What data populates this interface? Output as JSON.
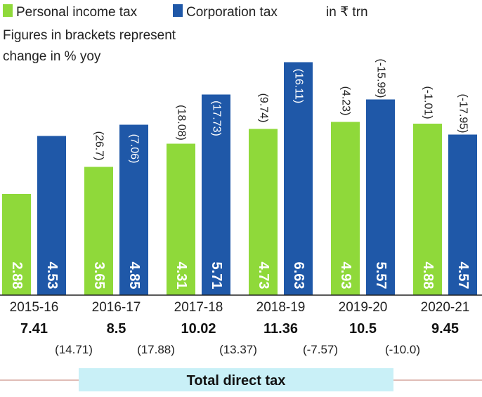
{
  "legend": {
    "personal_label": "Personal income tax",
    "corporate_label": "Corporation tax",
    "unit": "in ₹ trn"
  },
  "note": [
    "Figures in brackets represent",
    "change in % yoy"
  ],
  "footer_label": "Total direct tax",
  "colors": {
    "personal": "#8fd93a",
    "corporate": "#1f58a8",
    "footer_band": "#c9f0f7",
    "baseline": "#222222"
  },
  "chart_data": {
    "type": "bar",
    "categories": [
      "2015-16",
      "2016-17",
      "2017-18",
      "2018-19",
      "2019-20",
      "2020-21"
    ],
    "series": [
      {
        "name": "Personal income tax",
        "values": [
          2.88,
          3.65,
          4.31,
          4.73,
          4.93,
          4.88
        ],
        "changes": [
          "",
          "(26.7)",
          "(18.08)",
          "(9.74)",
          "(4.23)",
          "(-1.01)"
        ]
      },
      {
        "name": "Corporation tax",
        "values": [
          4.53,
          4.85,
          5.71,
          6.63,
          5.57,
          4.57
        ],
        "changes": [
          "",
          "(7.06)",
          "(17.73)",
          "(16.11)",
          "(-15.99)",
          "(-17.95)"
        ]
      }
    ],
    "totals": [
      "7.41",
      "8.5",
      "10.02",
      "11.36",
      "10.5",
      "9.45"
    ],
    "total_changes": [
      "(14.71)",
      "(17.88)",
      "(13.37)",
      "(-7.57)",
      "(-10.0)"
    ],
    "ylim": [
      0,
      7.2
    ],
    "legend_position": "top-left",
    "grid": false
  }
}
